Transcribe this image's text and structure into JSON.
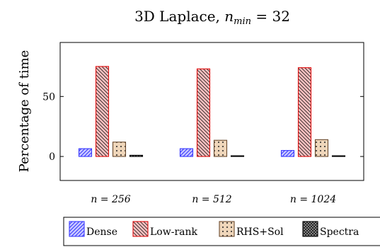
{
  "chart_data": {
    "type": "bar",
    "title_prefix": "3D Laplace, ",
    "title_var": "n",
    "title_sub": "min",
    "title_suffix": " = 32",
    "ylabel": "Percentage of time",
    "xlabel": "",
    "ylim": [
      -20,
      95
    ],
    "yticks": [
      0,
      50
    ],
    "grid": false,
    "categories": [
      "n = 256",
      "n = 512",
      "n = 1024"
    ],
    "series": [
      {
        "name": "Dense",
        "values": [
          6.5,
          6.5,
          5.0
        ],
        "color": "#3a3aff",
        "fill": "#b8b8ff",
        "pattern": "north-east-lines"
      },
      {
        "name": "Low-rank",
        "values": [
          75,
          73,
          74
        ],
        "color": "#e01010",
        "fill": "#ffb6b6",
        "pattern": "north-west-lines"
      },
      {
        "name": "RHS+Sol",
        "values": [
          12,
          13.5,
          14
        ],
        "color": "#6b4a2e",
        "fill": "#edd2b4",
        "pattern": "dots"
      },
      {
        "name": "Spectra",
        "values": [
          1.0,
          0.4,
          0.4
        ],
        "color": "#000000",
        "fill": "#888888",
        "pattern": "crosshatch"
      }
    ],
    "legend_position": "bottom-center"
  }
}
